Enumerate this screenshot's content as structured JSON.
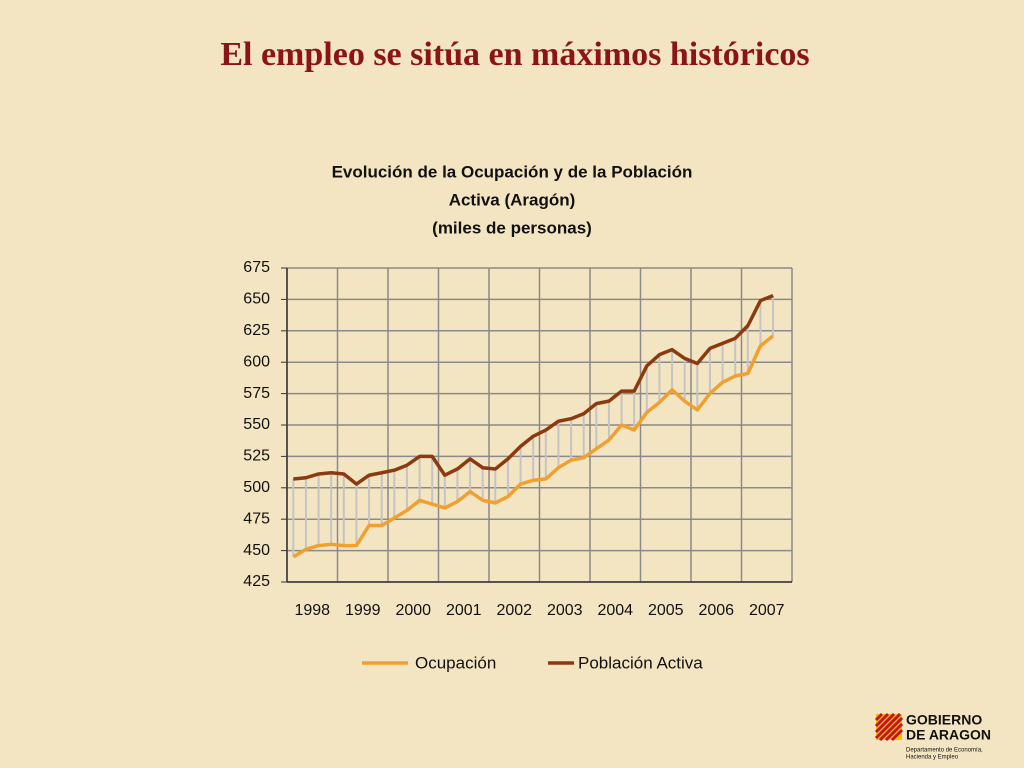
{
  "header": {
    "title": "El empleo se sitúa en máximos históricos"
  },
  "chart_data": {
    "type": "line",
    "title": [
      "Evolución de la Ocupación y de la Población",
      "Activa (Aragón)",
      "(miles de personas)"
    ],
    "categories": [
      "1998",
      null,
      null,
      null,
      "1999",
      null,
      null,
      null,
      "2000",
      null,
      null,
      null,
      "2001",
      null,
      null,
      null,
      "2002",
      null,
      null,
      null,
      "2003",
      null,
      null,
      null,
      "2004",
      null,
      null,
      null,
      "2005",
      null,
      null,
      null,
      "2006",
      null,
      null,
      null,
      "2007",
      null,
      null,
      null
    ],
    "series": [
      {
        "name": "Ocupación",
        "color": "#f0a030",
        "values": [
          445,
          451,
          454,
          455,
          454,
          454,
          470,
          470,
          476,
          482,
          490,
          487,
          484,
          489,
          497,
          490,
          488,
          493,
          503,
          506,
          507,
          516,
          522,
          524,
          531,
          538,
          550,
          546,
          560,
          568,
          578,
          569,
          562,
          575,
          584,
          589,
          591,
          613,
          621,
          null
        ]
      },
      {
        "name": "Población Activa",
        "color": "#8b3a0f",
        "values": [
          507,
          508,
          511,
          512,
          511,
          503,
          510,
          512,
          514,
          518,
          525,
          525,
          510,
          515,
          523,
          516,
          515,
          523,
          533,
          541,
          546,
          553,
          555,
          559,
          567,
          569,
          577,
          577,
          597,
          606,
          610,
          603,
          599,
          611,
          615,
          619,
          629,
          649,
          653,
          null
        ]
      }
    ],
    "ylim": [
      425,
      675
    ],
    "yticks": [
      425,
      450,
      475,
      500,
      525,
      550,
      575,
      600,
      625,
      650,
      675
    ],
    "grid": true,
    "legend": "bottom"
  },
  "logo": {
    "name": [
      "GOBIERNO",
      "DE ARAGON"
    ],
    "department": [
      "Departamento de Economía,",
      "Hacienda y Empleo"
    ]
  }
}
